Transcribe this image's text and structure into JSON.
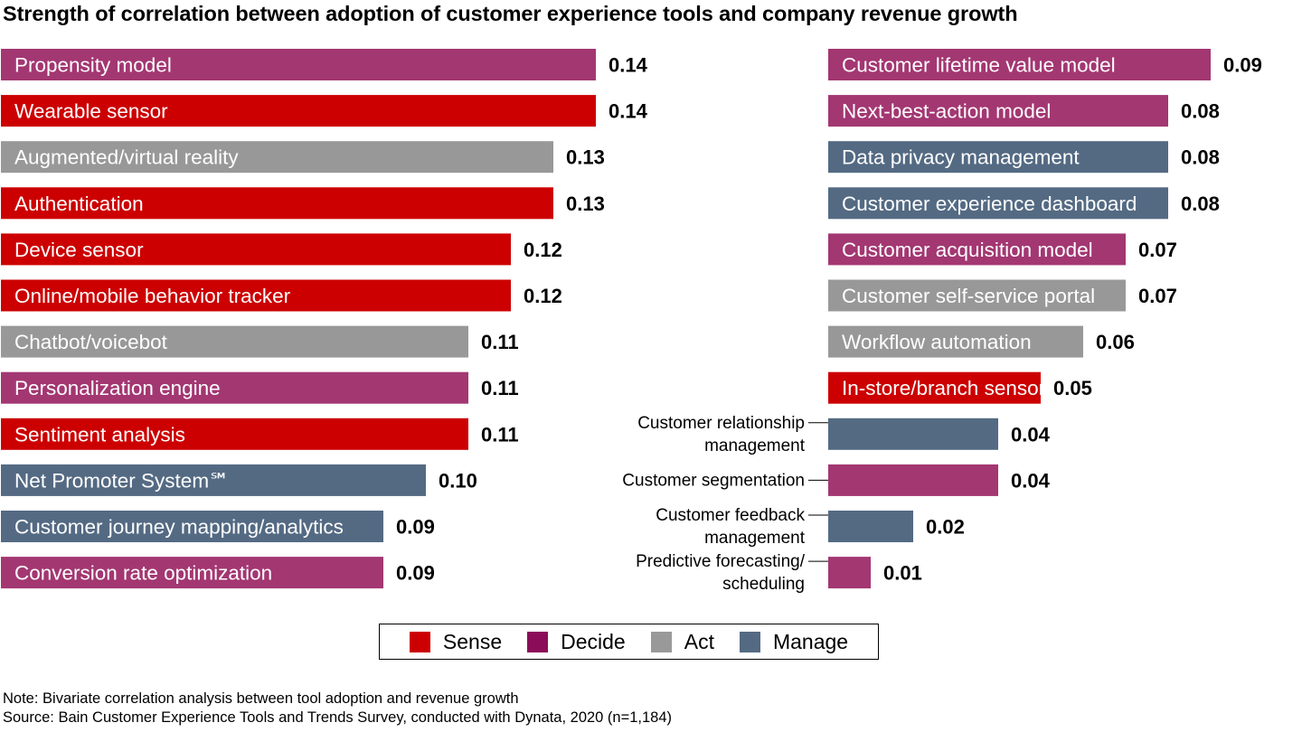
{
  "title": "Strength of correlation between adoption of customer experience tools and company revenue growth",
  "legend": [
    {
      "label": "Sense",
      "color": "#cc0000"
    },
    {
      "label": "Decide",
      "color": "#8b0d5a"
    },
    {
      "label": "Act",
      "color": "#999999"
    },
    {
      "label": "Manage",
      "color": "#546a83"
    }
  ],
  "colors": {
    "Sense": "#cc0000",
    "Decide": "#a33772",
    "Act": "#989898",
    "Manage": "#546a83"
  },
  "chart_data": {
    "type": "bar",
    "orientation": "horizontal",
    "title": "Strength of correlation between adoption of customer experience tools and company revenue growth",
    "xlabel": "",
    "ylabel": "",
    "xlim": [
      0,
      0.15
    ],
    "grid": false,
    "legend_position": "bottom-center",
    "panels": [
      {
        "name": "left",
        "bars": [
          {
            "label": "Propensity model",
            "value": 0.14,
            "value_label": "0.14",
            "category": "Decide"
          },
          {
            "label": "Wearable sensor",
            "value": 0.14,
            "value_label": "0.14",
            "category": "Sense"
          },
          {
            "label": "Augmented/virtual reality",
            "value": 0.13,
            "value_label": "0.13",
            "category": "Act"
          },
          {
            "label": "Authentication",
            "value": 0.13,
            "value_label": "0.13",
            "category": "Sense"
          },
          {
            "label": "Device sensor",
            "value": 0.12,
            "value_label": "0.12",
            "category": "Sense"
          },
          {
            "label": "Online/mobile behavior tracker",
            "value": 0.12,
            "value_label": "0.12",
            "category": "Sense"
          },
          {
            "label": "Chatbot/voicebot",
            "value": 0.11,
            "value_label": "0.11",
            "category": "Act"
          },
          {
            "label": "Personalization engine",
            "value": 0.11,
            "value_label": "0.11",
            "category": "Decide"
          },
          {
            "label": "Sentiment analysis",
            "value": 0.11,
            "value_label": "0.11",
            "category": "Sense"
          },
          {
            "label": "Net Promoter System℠",
            "value": 0.1,
            "value_label": "0.10",
            "category": "Manage"
          },
          {
            "label": "Customer journey mapping/analytics",
            "value": 0.09,
            "value_label": "0.09",
            "category": "Manage"
          },
          {
            "label": "Conversion rate optimization",
            "value": 0.09,
            "value_label": "0.09",
            "category": "Decide"
          }
        ]
      },
      {
        "name": "right",
        "bars": [
          {
            "label": "Customer lifetime value model",
            "value": 0.09,
            "value_label": "0.09",
            "category": "Decide"
          },
          {
            "label": "Next-best-action model",
            "value": 0.08,
            "value_label": "0.08",
            "category": "Decide"
          },
          {
            "label": "Data privacy management",
            "value": 0.08,
            "value_label": "0.08",
            "category": "Manage"
          },
          {
            "label": "Customer experience dashboard",
            "value": 0.08,
            "value_label": "0.08",
            "category": "Manage"
          },
          {
            "label": "Customer acquisition model",
            "value": 0.07,
            "value_label": "0.07",
            "category": "Decide"
          },
          {
            "label": "Customer self-service portal",
            "value": 0.07,
            "value_label": "0.07",
            "category": "Act"
          },
          {
            "label": "Workflow automation",
            "value": 0.06,
            "value_label": "0.06",
            "category": "Act"
          },
          {
            "label": "In-store/branch sensor",
            "value": 0.05,
            "value_label": "0.05",
            "category": "Sense"
          },
          {
            "label": "Customer relationship management",
            "label_lines": [
              "Customer relationship",
              "management"
            ],
            "value": 0.04,
            "value_label": "0.04",
            "category": "Manage",
            "label_outside": true
          },
          {
            "label": "Customer segmentation",
            "label_lines": [
              "Customer segmentation"
            ],
            "value": 0.04,
            "value_label": "0.04",
            "category": "Decide",
            "label_outside": true
          },
          {
            "label": "Customer feedback management",
            "label_lines": [
              "Customer feedback",
              "management"
            ],
            "value": 0.02,
            "value_label": "0.02",
            "category": "Manage",
            "label_outside": true
          },
          {
            "label": "Predictive forecasting/scheduling",
            "label_lines": [
              "Predictive forecasting/",
              "scheduling"
            ],
            "value": 0.01,
            "value_label": "0.01",
            "category": "Decide",
            "label_outside": true
          }
        ]
      }
    ]
  },
  "notes": {
    "note": "Note: Bivariate correlation analysis between tool adoption and revenue growth",
    "source": "Source: Bain Customer Experience Tools and Trends Survey, conducted with Dynata, 2020 (n=1,184)"
  }
}
